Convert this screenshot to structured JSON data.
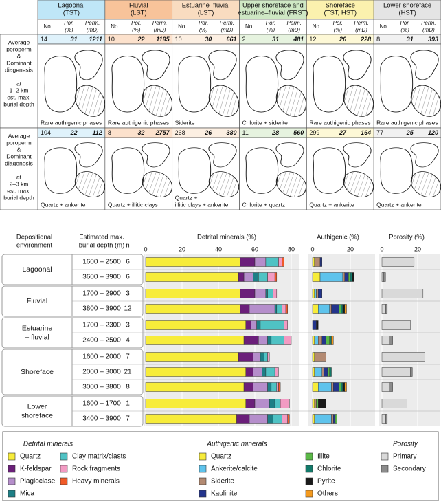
{
  "top": {
    "columns": [
      {
        "name": [
          "Lagoonal",
          "(TST)"
        ],
        "color": "#bfe6f7",
        "tint": "#dff2fb"
      },
      {
        "name": [
          "Fluvial",
          "(LST)"
        ],
        "color": "#f8c39a",
        "tint": "#fce1cc"
      },
      {
        "name": [
          "Estuarine–fluvial",
          "(LST)"
        ],
        "color": "#f9dcc0",
        "tint": "#fcefe2"
      },
      {
        "name": [
          "Upper shoreface and",
          "estuarine–fluvial (FRST)"
        ],
        "color": "#cfe8c4",
        "tint": "#e6f3df"
      },
      {
        "name": [
          "Shoreface",
          "(TST, HST)"
        ],
        "color": "#fbf1ae",
        "tint": "#fdf8d6"
      },
      {
        "name": [
          "Lower shoreface",
          "(HST)"
        ],
        "color": "#e4e4e4",
        "tint": "#f1f1f1"
      }
    ],
    "col_heads": [
      [
        "No."
      ],
      [
        "Por.",
        "(%)"
      ],
      [
        "Perm.",
        "(mD)"
      ]
    ],
    "rows": [
      {
        "label": [
          "Average",
          "poroperm",
          "&",
          "Dominant",
          "diagenesis",
          "",
          "at",
          "1–2 km",
          "est. max.",
          "burial depth"
        ],
        "values": [
          [
            14,
            31,
            1211
          ],
          [
            10,
            22,
            1195
          ],
          [
            10,
            30,
            661
          ],
          [
            2,
            31,
            481
          ],
          [
            12,
            26,
            228
          ],
          [
            8,
            31,
            393
          ]
        ],
        "captions": [
          [
            "Rare authigenic phases"
          ],
          [
            "Rare authigenic phases"
          ],
          [
            "Siderite"
          ],
          [
            "Chlorite + siderite"
          ],
          [
            "Rare authigenic phases"
          ],
          [
            "Rare authigenic phases"
          ]
        ]
      },
      {
        "label": [
          "Average",
          "poroperm",
          "&",
          "Dominant",
          "diagenesis",
          "",
          "at",
          "2–3 km",
          "est. max.",
          "burial depth"
        ],
        "values": [
          [
            104,
            22,
            112
          ],
          [
            8,
            32,
            2757
          ],
          [
            268,
            26,
            380
          ],
          [
            11,
            28,
            560
          ],
          [
            299,
            27,
            164
          ],
          [
            77,
            25,
            120
          ]
        ],
        "captions": [
          [
            "Quartz + ankerite"
          ],
          [
            "Quartz + illitic clays"
          ],
          [
            "Quartz +",
            "illitic clays + ankerite"
          ],
          [
            "Chlorite + quartz"
          ],
          [
            "Quartz + ankerite"
          ],
          [
            "Quartz + ankerite"
          ]
        ]
      }
    ]
  },
  "chart": {
    "headers": {
      "env": [
        "Depositional",
        "environment"
      ],
      "depth": [
        "Estimated max.",
        "burial depth (m)"
      ],
      "n": "n",
      "detrital": "Detrital minerals (%)",
      "authigenic": "Authigenic (%)",
      "porosity": "Porosity (%)"
    },
    "axes": {
      "detrital": {
        "lim": [
          0,
          80
        ],
        "ticks": [
          0,
          20,
          40,
          60,
          80
        ]
      },
      "authigenic": {
        "lim": [
          0,
          20
        ],
        "ticks": [
          0,
          20
        ]
      },
      "porosity": {
        "lim": [
          0,
          20
        ],
        "ticks": [
          0,
          20
        ]
      }
    },
    "groups": [
      {
        "name": [
          "Lagoonal"
        ],
        "rows": [
          {
            "depth": "1600 – 2500",
            "n": 6,
            "detrital": [
              52,
              8,
              6,
              0,
              7,
              2,
              1
            ],
            "authigenic": [
              1,
              0,
              3,
              1,
              0,
              0,
              0,
              0
            ],
            "porosity": [
              18,
              0
            ]
          },
          {
            "depth": "3600 – 3900",
            "n": 6,
            "detrital": [
              51,
              3,
              5,
              3,
              5,
              4,
              1
            ],
            "authigenic": [
              4,
              12,
              1,
              2,
              1,
              1,
              1,
              0
            ],
            "porosity": [
              1,
              1
            ]
          }
        ]
      },
      {
        "name": [
          "Fluvial"
        ],
        "rows": [
          {
            "depth": "1700 – 2900",
            "n": 3,
            "detrital": [
              52,
              8,
              6,
              1,
              3,
              2,
              0
            ],
            "authigenic": [
              1,
              1,
              1,
              2,
              0,
              0,
              0,
              0
            ],
            "porosity": [
              23,
              0
            ]
          },
          {
            "depth": "3800 – 3900",
            "n": 12,
            "detrital": [
              52,
              5,
              14,
              1,
              3,
              2,
              1
            ],
            "authigenic": [
              3,
              6,
              1,
              4,
              1,
              1,
              1,
              1
            ],
            "porosity": [
              2,
              1
            ]
          }
        ]
      },
      {
        "name": [
          "Estuarine",
          "– fluvial"
        ],
        "rows": [
          {
            "depth": "1700 – 2300",
            "n": 3,
            "detrital": [
              55,
              3,
              3,
              2,
              13,
              2,
              0
            ],
            "authigenic": [
              0,
              0,
              0,
              2,
              0,
              0,
              1,
              0
            ],
            "porosity": [
              16,
              0
            ]
          },
          {
            "depth": "2400 – 2500",
            "n": 4,
            "detrital": [
              54,
              8,
              5,
              2,
              7,
              4,
              0
            ],
            "authigenic": [
              1,
              2,
              2,
              2,
              2,
              1,
              0,
              1
            ],
            "porosity": [
              4,
              2
            ]
          }
        ]
      },
      {
        "name": [
          "Shoreface"
        ],
        "rows": [
          {
            "depth": "1600 – 2000",
            "n": 7,
            "detrital": [
              51,
              8,
              4,
              2,
              2,
              1,
              0
            ],
            "authigenic": [
              1,
              0,
              6,
              0,
              0,
              0,
              0,
              0
            ],
            "porosity": [
              24,
              0
            ]
          },
          {
            "depth": "2000 – 3000",
            "n": 21,
            "detrital": [
              55,
              4,
              5,
              2,
              5,
              2,
              0
            ],
            "authigenic": [
              1,
              4,
              1,
              2,
              1,
              1,
              0,
              0
            ],
            "porosity": [
              16,
              1
            ]
          },
          {
            "depth": "3000 – 3800",
            "n": 8,
            "detrital": [
              54,
              5,
              8,
              2,
              3,
              1,
              1
            ],
            "authigenic": [
              3,
              7,
              1,
              3,
              1,
              1,
              1,
              1
            ],
            "porosity": [
              4,
              2
            ]
          }
        ]
      },
      {
        "name": [
          "Lower",
          "shoreface"
        ],
        "rows": [
          {
            "depth": "1600 – 1700",
            "n": 1,
            "detrital": [
              55,
              5,
              8,
              3,
              3,
              5,
              0
            ],
            "authigenic": [
              1,
              0,
              1,
              0,
              1,
              0,
              4,
              0
            ],
            "porosity": [
              14,
              0
            ]
          },
          {
            "depth": "3400 – 3900",
            "n": 7,
            "detrital": [
              50,
              7,
              10,
              3,
              5,
              3,
              1
            ],
            "authigenic": [
              1,
              9,
              1,
              1,
              1,
              0,
              0,
              0
            ],
            "porosity": [
              2,
              1
            ]
          }
        ]
      }
    ],
    "legend": {
      "detrital": {
        "title": "Detrital minerals",
        "items": [
          "Quartz",
          "K-feldspar",
          "Plagioclase",
          "Mica",
          "Clay matrix/clasts",
          "Rock fragments",
          "Heavy minerals"
        ],
        "colors": [
          "#f7ec3a",
          "#6b1f7a",
          "#b58ecb",
          "#1d7f86",
          "#4fc2c4",
          "#f29bc3",
          "#f05a28"
        ]
      },
      "authigenic": {
        "title": "Authigenic minerals",
        "items": [
          "Quartz",
          "Ankerite/calcite",
          "Siderite",
          "Kaolinite",
          "Illite",
          "Chlorite",
          "Pyrite",
          "Others"
        ],
        "colors": [
          "#f7ec3a",
          "#5ec3ec",
          "#b38a72",
          "#23348c",
          "#5bb947",
          "#127a6a",
          "#1a1a1a",
          "#f49a1e"
        ]
      },
      "porosity": {
        "title": "Porosity",
        "items": [
          "Primary",
          "Secondary"
        ],
        "colors": [
          "#d9d9d9",
          "#8c8c8c"
        ]
      }
    }
  }
}
